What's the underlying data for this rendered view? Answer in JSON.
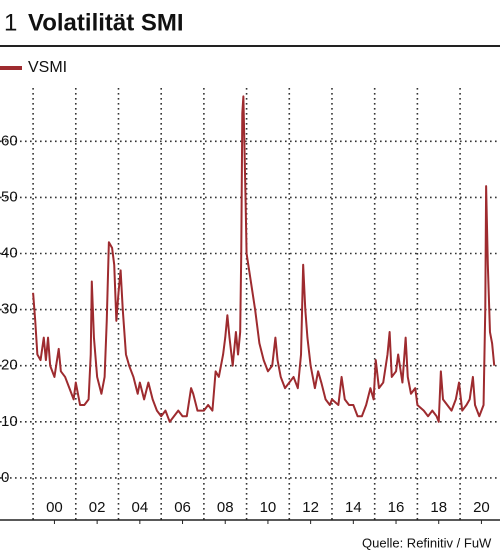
{
  "chart_data": {
    "type": "line",
    "number": "1",
    "title": "Volatilität SMI",
    "source": "Quelle: Refinitiv / FuW",
    "x": [
      1999.0,
      1999.1,
      1999.2,
      1999.35,
      1999.5,
      1999.6,
      1999.7,
      1999.8,
      2000.0,
      2000.2,
      2000.3,
      2000.5,
      2000.7,
      2000.9,
      2001.0,
      2001.2,
      2001.4,
      2001.6,
      2001.7,
      2001.75,
      2001.85,
      2002.0,
      2002.2,
      2002.35,
      2002.45,
      2002.55,
      2002.7,
      2002.8,
      2002.9,
      2003.0,
      2003.1,
      2003.2,
      2003.35,
      2003.5,
      2003.7,
      2003.9,
      2004.0,
      2004.2,
      2004.4,
      2004.6,
      2004.8,
      2005.0,
      2005.2,
      2005.4,
      2005.6,
      2005.8,
      2006.0,
      2006.2,
      2006.4,
      2006.5,
      2006.7,
      2007.0,
      2007.2,
      2007.4,
      2007.55,
      2007.7,
      2007.9,
      2008.0,
      2008.1,
      2008.2,
      2008.35,
      2008.5,
      2008.6,
      2008.7,
      2008.75,
      2008.8,
      2008.85,
      2008.95,
      2009.0,
      2009.2,
      2009.4,
      2009.6,
      2009.8,
      2010.0,
      2010.2,
      2010.35,
      2010.45,
      2010.6,
      2010.8,
      2011.0,
      2011.2,
      2011.4,
      2011.55,
      2011.65,
      2011.75,
      2011.85,
      2012.0,
      2012.2,
      2012.35,
      2012.5,
      2012.7,
      2012.9,
      2013.0,
      2013.3,
      2013.45,
      2013.6,
      2013.8,
      2014.0,
      2014.2,
      2014.4,
      2014.6,
      2014.8,
      2014.95,
      2015.05,
      2015.2,
      2015.4,
      2015.6,
      2015.7,
      2015.8,
      2016.0,
      2016.1,
      2016.3,
      2016.45,
      2016.55,
      2016.7,
      2016.9,
      2017.0,
      2017.3,
      2017.5,
      2017.7,
      2017.9,
      2018.0,
      2018.1,
      2018.2,
      2018.4,
      2018.6,
      2018.8,
      2018.95,
      2019.1,
      2019.3,
      2019.45,
      2019.6,
      2019.7,
      2019.9,
      2020.0,
      2020.1,
      2020.18,
      2020.22,
      2020.3,
      2020.4,
      2020.5,
      2020.6
    ],
    "series": [
      {
        "name": "VSMI",
        "color": "#9e2b2f",
        "values": [
          33,
          28,
          22,
          21,
          25,
          21,
          25,
          20,
          18,
          23,
          19,
          18,
          16,
          14,
          17,
          13,
          13,
          14,
          22,
          35,
          25,
          18,
          15,
          18,
          28,
          42,
          41,
          38,
          28,
          33,
          37,
          30,
          22,
          20,
          18,
          15,
          17,
          14,
          17,
          14,
          12,
          11,
          12,
          10,
          11,
          12,
          11,
          11,
          16,
          15,
          12,
          12,
          13,
          12,
          19,
          18,
          22,
          25,
          29,
          25,
          20,
          26,
          22,
          26,
          40,
          65,
          68,
          50,
          40,
          35,
          30,
          24,
          21,
          19,
          20,
          25,
          21,
          18,
          16,
          17,
          18,
          16,
          22,
          38,
          30,
          25,
          20,
          16,
          19,
          17,
          14,
          13,
          14,
          13,
          18,
          14,
          13,
          13,
          11,
          11,
          13,
          16,
          14,
          21,
          16,
          17,
          22,
          26,
          18,
          19,
          22,
          17,
          25,
          18,
          15,
          16,
          13,
          12,
          11,
          12,
          11,
          10,
          19,
          14,
          13,
          12,
          14,
          17,
          12,
          13,
          14,
          18,
          13,
          11,
          12,
          13,
          30,
          52,
          38,
          26,
          24,
          20
        ]
      }
    ],
    "xlim": [
      1997.45,
      2020.87
    ],
    "ylim": [
      -7.5,
      69.5
    ],
    "xticks": [
      {
        "value": 2000,
        "label": "00"
      },
      {
        "value": 2002,
        "label": "02"
      },
      {
        "value": 2004,
        "label": "04"
      },
      {
        "value": 2006,
        "label": "06"
      },
      {
        "value": 2008,
        "label": "08"
      },
      {
        "value": 2010,
        "label": "10"
      },
      {
        "value": 2012,
        "label": "12"
      },
      {
        "value": 2014,
        "label": "14"
      },
      {
        "value": 2016,
        "label": "16"
      },
      {
        "value": 2018,
        "label": "18"
      },
      {
        "value": 2020,
        "label": "20"
      }
    ],
    "xgrid": [
      1999,
      2001,
      2003,
      2005,
      2007,
      2009,
      2011,
      2013,
      2015,
      2017,
      2019
    ],
    "yticks": [
      0,
      10,
      20,
      30,
      40,
      50,
      60
    ],
    "grid": true,
    "legend": "top-left"
  }
}
